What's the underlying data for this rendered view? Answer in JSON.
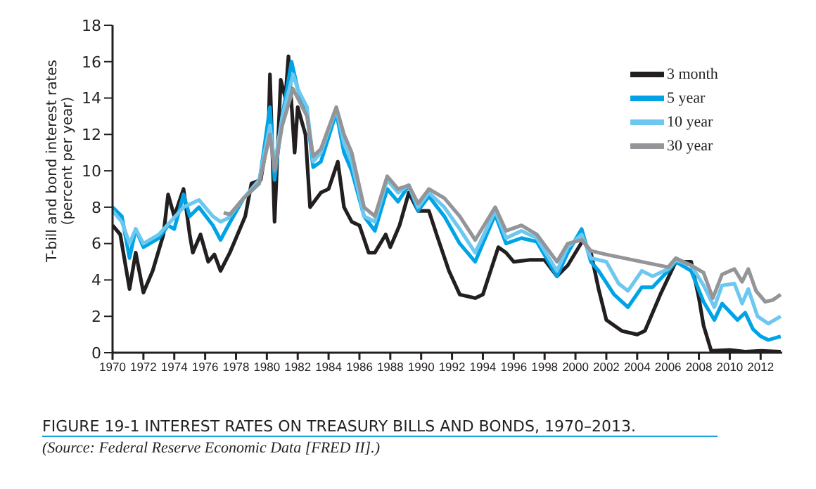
{
  "chart_data": {
    "type": "line",
    "title": "FIGURE 19-1   INTEREST RATES ON TREASURY BILLS AND BONDS, 1970–2013.",
    "ylabel": "T-bill and bond interest rates\n(percent per year)",
    "annotations": [
      "(Source: Federal Reserve Economic Data [FRED II].)"
    ],
    "xlim": [
      1970,
      2013.4
    ],
    "xticks": [
      1970,
      1972,
      1974,
      1976,
      1978,
      1980,
      1982,
      1984,
      1986,
      1988,
      1990,
      1992,
      1994,
      1996,
      1998,
      2000,
      2002,
      2004,
      2006,
      2008,
      2010,
      2012
    ],
    "ylim": [
      0,
      18
    ],
    "yticks": [
      0,
      2,
      4,
      6,
      8,
      10,
      12,
      14,
      16,
      18
    ],
    "grid": false,
    "legend": "top right",
    "marker": "none",
    "line_style": "solid",
    "series": [
      {
        "name": "3 month",
        "color": "#231f20",
        "x": [
          1970,
          1970.5,
          1971.1,
          1971.5,
          1972,
          1972.6,
          1973.3,
          1973.6,
          1974,
          1974.6,
          1975,
          1975.2,
          1975.7,
          1976.2,
          1976.6,
          1977,
          1977.6,
          1978,
          1978.6,
          1979,
          1979.6,
          1980.1,
          1980.2,
          1980.5,
          1980.9,
          1981.2,
          1981.4,
          1981.8,
          1982,
          1982.5,
          1982.8,
          1983.5,
          1984,
          1984.6,
          1985,
          1985.5,
          1986,
          1986.6,
          1987,
          1987.7,
          1988,
          1988.6,
          1989.2,
          1989.8,
          1990.5,
          1991,
          1991.8,
          1992.5,
          1993.5,
          1994,
          1994.5,
          1995,
          1995.5,
          1996,
          1997,
          1998,
          1998.8,
          1999.5,
          2000.5,
          2001,
          2001.5,
          2002,
          2003,
          2004,
          2004.5,
          2005.5,
          2006.5,
          2007.5,
          2008,
          2008.3,
          2008.8,
          2010,
          2011,
          2012,
          2013.3
        ],
        "values": [
          7,
          6.5,
          3.5,
          5.5,
          3.3,
          4.5,
          6.5,
          8.7,
          7.5,
          9,
          6.5,
          5.5,
          6.5,
          5,
          5.4,
          4.5,
          5.5,
          6.3,
          7.5,
          9.3,
          9.5,
          12,
          15.3,
          7.2,
          15,
          14,
          16.3,
          11,
          13.5,
          12,
          8,
          8.8,
          9,
          10.5,
          8,
          7.2,
          7,
          5.5,
          5.5,
          6.5,
          5.8,
          7,
          8.8,
          7.8,
          7.8,
          6.5,
          4.5,
          3.2,
          3,
          3.2,
          4.5,
          5.8,
          5.5,
          5,
          5.1,
          5.1,
          4.2,
          4.8,
          6.2,
          5.5,
          3.5,
          1.8,
          1.2,
          1,
          1.2,
          3.2,
          5,
          5,
          3,
          1.5,
          0.1,
          0.15,
          0.05,
          0.1,
          0.05
        ]
      },
      {
        "name": "5 year",
        "color": "#00a3e6",
        "x": [
          1970,
          1970.6,
          1971.1,
          1971.5,
          1972,
          1973,
          1973.6,
          1974,
          1974.6,
          1975,
          1975.6,
          1976.5,
          1977,
          1977.5,
          1978.5,
          1979.5,
          1980.2,
          1980.5,
          1981,
          1981.6,
          1982,
          1982.6,
          1983,
          1983.5,
          1984.5,
          1985,
          1985.5,
          1986.3,
          1987,
          1987.8,
          1988.5,
          1989.2,
          1989.8,
          1990.5,
          1991.5,
          1992.5,
          1993.5,
          1994.8,
          1995.5,
          1996.5,
          1997.5,
          1998.8,
          1999.5,
          2000.4,
          2001,
          2001.5,
          2002.5,
          2003.4,
          2004.3,
          2005,
          2006,
          2006.5,
          2007.5,
          2008.3,
          2009,
          2009.5,
          2010.5,
          2011,
          2011.5,
          2012,
          2012.5,
          2013.3
        ],
        "values": [
          8,
          7.5,
          5.2,
          6.8,
          5.8,
          6.3,
          7,
          6.8,
          8.7,
          7.5,
          8,
          7,
          6.2,
          7,
          8.5,
          9.3,
          13.5,
          9.5,
          13,
          16,
          14.5,
          13.2,
          10.2,
          10.5,
          13.2,
          11,
          10,
          7.5,
          6.7,
          9,
          8.3,
          9.2,
          7.8,
          8.6,
          7.5,
          6,
          5,
          7.6,
          6,
          6.3,
          6.1,
          4.2,
          5.5,
          6.8,
          5,
          4.5,
          3.2,
          2.5,
          3.6,
          3.6,
          4.5,
          5,
          4.5,
          2.8,
          1.8,
          2.7,
          1.8,
          2.2,
          1.3,
          0.9,
          0.7,
          0.9
        ]
      },
      {
        "name": "10 year",
        "color": "#6cc8f0",
        "x": [
          1970,
          1970.6,
          1971.1,
          1971.5,
          1972,
          1973,
          1974.6,
          1975.6,
          1976.5,
          1977,
          1977.5,
          1978.5,
          1979.5,
          1980.2,
          1980.5,
          1981,
          1981.7,
          1982,
          1982.6,
          1983,
          1983.5,
          1984.5,
          1985,
          1985.5,
          1986.3,
          1987,
          1987.8,
          1988.5,
          1989.2,
          1989.8,
          1990.5,
          1991.5,
          1992.5,
          1993.5,
          1994.8,
          1995.5,
          1996.5,
          1997.5,
          1998.8,
          1999.5,
          2000.4,
          2001,
          2002,
          2002.8,
          2003.4,
          2004.3,
          2005,
          2006,
          2006.5,
          2007.5,
          2008.3,
          2009,
          2009.5,
          2010.3,
          2010.8,
          2011.2,
          2011.8,
          2012.5,
          2013.3
        ],
        "values": [
          7.8,
          7.2,
          6,
          6.8,
          6,
          6.5,
          8,
          8.4,
          7.5,
          7.2,
          7.4,
          8.5,
          9.5,
          12.5,
          10.3,
          13,
          15.3,
          14.5,
          13.5,
          10.5,
          11,
          13.4,
          11.5,
          10.5,
          7.5,
          7.2,
          9.5,
          8.8,
          9.2,
          8,
          8.8,
          8,
          6.8,
          5.5,
          7.8,
          6.3,
          6.7,
          6.3,
          4.5,
          5.8,
          6.5,
          5.2,
          5,
          3.8,
          3.4,
          4.5,
          4.2,
          4.6,
          5.1,
          4.8,
          3.7,
          2.5,
          3.7,
          3.8,
          2.7,
          3.5,
          2,
          1.6,
          2
        ]
      },
      {
        "name": "30 year",
        "color": "#939598",
        "x": [
          1977.2,
          1977.6,
          1978.5,
          1979.5,
          1980.2,
          1980.5,
          1981,
          1981.7,
          1982,
          1982.6,
          1983,
          1983.5,
          1984.5,
          1985,
          1985.5,
          1986.3,
          1987,
          1987.8,
          1988.5,
          1989.2,
          1989.8,
          1990.5,
          1991.5,
          1992.5,
          1993.5,
          1994.8,
          1995.5,
          1996.5,
          1997.5,
          1998.8,
          1999.5,
          2000.4,
          2001,
          2002,
          2006,
          2006.5,
          2007.5,
          2008.3,
          2008.9,
          2009.5,
          2010.3,
          2010.8,
          2011.2,
          2011.7,
          2012.3,
          2012.8,
          2013.3
        ],
        "values": [
          7.7,
          7.6,
          8.5,
          9.3,
          12,
          10,
          12.5,
          14.5,
          14,
          13,
          10.8,
          11.2,
          13.5,
          12,
          11,
          8,
          7.5,
          9.7,
          9,
          9.2,
          8.2,
          9,
          8.5,
          7.5,
          6.2,
          8,
          6.7,
          7,
          6.5,
          5,
          6,
          6.2,
          5.6,
          5.4,
          4.7,
          5.2,
          4.8,
          4.4,
          3,
          4.3,
          4.6,
          3.9,
          4.6,
          3.4,
          2.8,
          2.9,
          3.2
        ]
      }
    ]
  }
}
